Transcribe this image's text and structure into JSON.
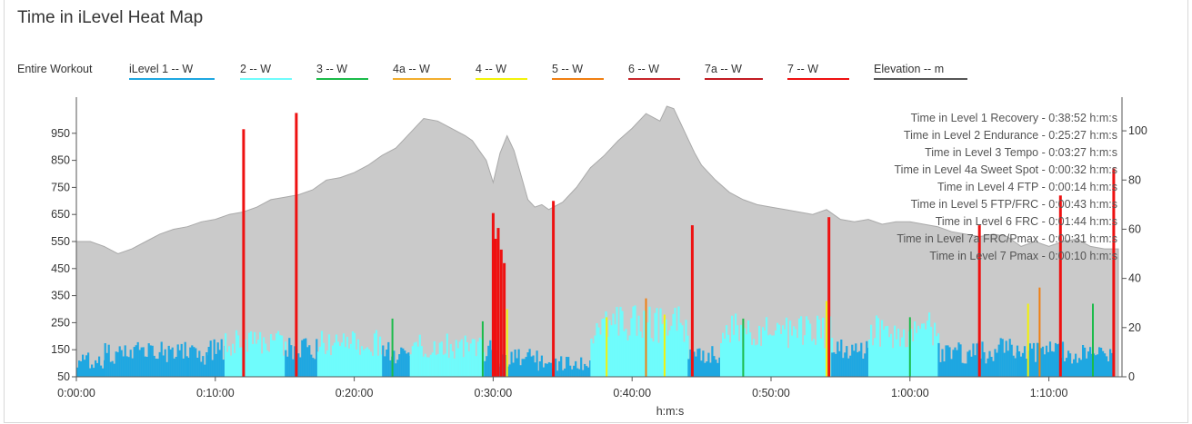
{
  "title": "Time in iLevel Heat Map",
  "legend": {
    "entire_label": "Entire Workout",
    "items": [
      {
        "label": "iLevel 1  -- W",
        "color": "#1ea7e1"
      },
      {
        "label": "2  -- W",
        "color": "#6ffcfc"
      },
      {
        "label": "3  -- W",
        "color": "#1bbb4a"
      },
      {
        "label": "4a  -- W",
        "color": "#f2ae2e"
      },
      {
        "label": "4  -- W",
        "color": "#f2f20a"
      },
      {
        "label": "5  -- W",
        "color": "#f07f12"
      },
      {
        "label": "6  -- W",
        "color": "#c8262b"
      },
      {
        "label": "7a  -- W",
        "color": "#c21b22"
      },
      {
        "label": "7  -- W",
        "color": "#ee1111"
      },
      {
        "label": "Elevation  -- m",
        "color": "#555555"
      }
    ]
  },
  "chart_data": {
    "type": "area",
    "title": "Time in iLevel Heat Map",
    "xlabel": "h:m:s",
    "ylabel": "",
    "xlim_seconds": [
      0,
      4500
    ],
    "x_tick_labels": [
      "0:00:00",
      "0:10:00",
      "0:20:00",
      "0:30:00",
      "0:40:00",
      "0:50:00",
      "1:00:00",
      "1:10:00"
    ],
    "x_ticks_seconds": [
      0,
      600,
      1200,
      1800,
      2400,
      3000,
      3600,
      4200
    ],
    "y_left": {
      "lim": [
        50,
        1050
      ],
      "ticks": [
        50,
        150,
        250,
        350,
        450,
        550,
        650,
        750,
        850,
        950
      ],
      "unit": "W"
    },
    "y_right": {
      "lim": [
        0,
        110
      ],
      "ticks": [
        0,
        20,
        40,
        60,
        80,
        100
      ],
      "unit": "m"
    },
    "elevation": {
      "name": "Elevation",
      "x": [
        0,
        60,
        120,
        180,
        240,
        300,
        360,
        420,
        480,
        540,
        600,
        660,
        720,
        780,
        840,
        900,
        960,
        1020,
        1080,
        1140,
        1200,
        1260,
        1320,
        1380,
        1440,
        1500,
        1560,
        1620,
        1680,
        1710,
        1740,
        1770,
        1800,
        1830,
        1860,
        1890,
        1920,
        1950,
        1980,
        2010,
        2040,
        2100,
        2160,
        2220,
        2280,
        2340,
        2400,
        2460,
        2520,
        2550,
        2580,
        2610,
        2640,
        2670,
        2700,
        2760,
        2820,
        2880,
        2940,
        3000,
        3060,
        3120,
        3180,
        3240,
        3300,
        3360,
        3420,
        3480,
        3540,
        3600,
        3660,
        3720,
        3780,
        3840,
        3900,
        3960,
        4020,
        4080,
        4140,
        4200,
        4260,
        4320,
        4380,
        4440,
        4500
      ],
      "y": [
        55,
        55,
        53,
        50,
        52,
        55,
        58,
        60,
        61,
        63,
        64,
        66,
        67,
        69,
        72,
        73,
        74,
        76,
        80,
        81,
        83,
        86,
        90,
        93,
        99,
        105,
        104,
        101,
        98,
        96,
        92,
        88,
        79,
        91,
        98,
        92,
        82,
        72,
        69,
        70,
        68,
        71,
        77,
        85,
        90,
        96,
        101,
        107,
        104,
        110,
        109,
        103,
        97,
        91,
        86,
        80,
        75,
        72,
        70,
        69,
        68,
        67,
        66,
        68,
        64,
        63,
        64,
        62,
        63,
        63,
        62,
        61,
        59,
        58,
        57,
        58,
        57,
        53,
        55,
        53,
        55,
        56,
        53,
        52,
        52
      ]
    },
    "zones": [
      {
        "name": "iLevel 1",
        "color": "#1ea7e1"
      },
      {
        "name": "iLevel 2",
        "color": "#6ffcfc"
      },
      {
        "name": "iLevel 3",
        "color": "#1bbb4a"
      },
      {
        "name": "iLevel 4a",
        "color": "#f2ae2e"
      },
      {
        "name": "iLevel 4",
        "color": "#f2f20a"
      },
      {
        "name": "iLevel 5",
        "color": "#f07f12"
      },
      {
        "name": "iLevel 6",
        "color": "#c8262b"
      },
      {
        "name": "iLevel 7a",
        "color": "#c21b22"
      },
      {
        "name": "iLevel 7",
        "color": "#ee1111"
      }
    ],
    "power_segments": [
      {
        "start": 0,
        "end": 120,
        "zone": 0,
        "power": 120
      },
      {
        "start": 120,
        "end": 480,
        "zone": 0,
        "power": 150
      },
      {
        "start": 480,
        "end": 560,
        "zone": 0,
        "power": 140
      },
      {
        "start": 560,
        "end": 640,
        "zone": 0,
        "power": 160
      },
      {
        "start": 640,
        "end": 900,
        "zone": 1,
        "power": 185
      },
      {
        "start": 900,
        "end": 1040,
        "zone": 0,
        "power": 165
      },
      {
        "start": 1040,
        "end": 1320,
        "zone": 1,
        "power": 190
      },
      {
        "start": 1320,
        "end": 1440,
        "zone": 0,
        "power": 150
      },
      {
        "start": 1440,
        "end": 1760,
        "zone": 1,
        "power": 180
      },
      {
        "start": 1760,
        "end": 1820,
        "zone": 0,
        "power": 160
      },
      {
        "start": 1820,
        "end": 1990,
        "zone": 0,
        "power": 130
      },
      {
        "start": 1990,
        "end": 2050,
        "zone": 0,
        "power": 110
      },
      {
        "start": 2050,
        "end": 2220,
        "zone": 0,
        "power": 110
      },
      {
        "start": 2220,
        "end": 2640,
        "zone": 1,
        "power": 265
      },
      {
        "start": 2640,
        "end": 2780,
        "zone": 0,
        "power": 150
      },
      {
        "start": 2780,
        "end": 3000,
        "zone": 1,
        "power": 240
      },
      {
        "start": 3000,
        "end": 3260,
        "zone": 1,
        "power": 235
      },
      {
        "start": 3260,
        "end": 3420,
        "zone": 0,
        "power": 160
      },
      {
        "start": 3420,
        "end": 3720,
        "zone": 1,
        "power": 240
      },
      {
        "start": 3720,
        "end": 3980,
        "zone": 0,
        "power": 150
      },
      {
        "start": 3980,
        "end": 4060,
        "zone": 0,
        "power": 180
      },
      {
        "start": 4060,
        "end": 4280,
        "zone": 0,
        "power": 155
      },
      {
        "start": 4280,
        "end": 4470,
        "zone": 0,
        "power": 140
      }
    ],
    "power_spikes": [
      {
        "t": 722,
        "zone": 8,
        "power": 965
      },
      {
        "t": 950,
        "zone": 8,
        "power": 1025
      },
      {
        "t": 1365,
        "zone": 2,
        "power": 265
      },
      {
        "t": 1755,
        "zone": 2,
        "power": 255
      },
      {
        "t": 1800,
        "zone": 8,
        "power": 655
      },
      {
        "t": 1810,
        "zone": 8,
        "power": 560
      },
      {
        "t": 1822,
        "zone": 8,
        "power": 600
      },
      {
        "t": 1835,
        "zone": 8,
        "power": 520
      },
      {
        "t": 1848,
        "zone": 8,
        "power": 470
      },
      {
        "t": 1860,
        "zone": 4,
        "power": 300
      },
      {
        "t": 2060,
        "zone": 8,
        "power": 700
      },
      {
        "t": 2290,
        "zone": 4,
        "power": 270
      },
      {
        "t": 2460,
        "zone": 5,
        "power": 340
      },
      {
        "t": 2540,
        "zone": 4,
        "power": 280
      },
      {
        "t": 2660,
        "zone": 8,
        "power": 610
      },
      {
        "t": 2880,
        "zone": 2,
        "power": 265
      },
      {
        "t": 3250,
        "zone": 8,
        "power": 640
      },
      {
        "t": 3240,
        "zone": 4,
        "power": 330
      },
      {
        "t": 3600,
        "zone": 2,
        "power": 270
      },
      {
        "t": 3900,
        "zone": 8,
        "power": 610
      },
      {
        "t": 4110,
        "zone": 4,
        "power": 320
      },
      {
        "t": 4160,
        "zone": 5,
        "power": 380
      },
      {
        "t": 4250,
        "zone": 8,
        "power": 720
      },
      {
        "t": 4390,
        "zone": 2,
        "power": 320
      },
      {
        "t": 4480,
        "zone": 8,
        "power": 820
      }
    ]
  },
  "zone_summary": [
    "Time in Level 1 Recovery - 0:38:52 h:m:s",
    "Time in Level 2 Endurance - 0:25:27 h:m:s",
    "Time in Level 3 Tempo - 0:03:27 h:m:s",
    "Time in Level 4a Sweet Spot - 0:00:32 h:m:s",
    "Time in Level 4 FTP - 0:00:14 h:m:s",
    "Time in Level 5 FTP/FRC - 0:00:43 h:m:s",
    "Time in Level 6 FRC - 0:01:44 h:m:s",
    "Time in Level 7a FRC/Pmax - 0:00:31 h:m:s",
    "Time in Level 7 Pmax - 0:00:10 h:m:s"
  ]
}
